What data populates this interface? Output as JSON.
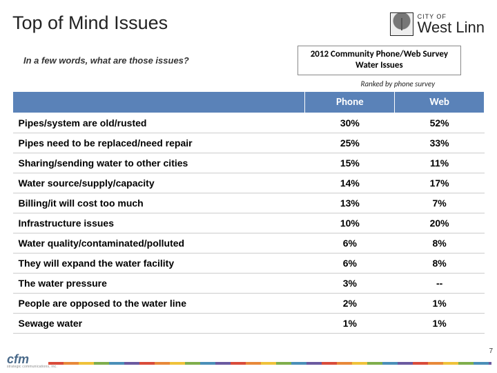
{
  "title": "Top of Mind Issues",
  "logo": {
    "city": "CITY OF",
    "name": "West Linn"
  },
  "question": "In a few words, what are those issues?",
  "survey_box": {
    "line1": "2012 Community Phone/Web Survey",
    "line2": "Water Issues"
  },
  "ranked_note": "Ranked by phone survey",
  "table": {
    "header_bg": "#5a82b8",
    "header_fg": "#ffffff",
    "columns": [
      "",
      "Phone",
      "Web"
    ],
    "rows": [
      [
        "Pipes/system are old/rusted",
        "30%",
        "52%"
      ],
      [
        "Pipes need to be replaced/need repair",
        "25%",
        "33%"
      ],
      [
        "Sharing/sending water to other cities",
        "15%",
        "11%"
      ],
      [
        "Water source/supply/capacity",
        "14%",
        "17%"
      ],
      [
        "Billing/it will cost too much",
        "13%",
        "7%"
      ],
      [
        "Infrastructure issues",
        "10%",
        "20%"
      ],
      [
        "Water quality/contaminated/polluted",
        "6%",
        "8%"
      ],
      [
        "They will expand the water facility",
        "6%",
        "8%"
      ],
      [
        "The water pressure",
        "3%",
        "--"
      ],
      [
        "People are opposed to the water line",
        "2%",
        "1%"
      ],
      [
        "Sewage water",
        "1%",
        "1%"
      ]
    ]
  },
  "footer": {
    "brand": "cfm",
    "brand_sub": "strategic communications, inc."
  },
  "page_number": "7"
}
